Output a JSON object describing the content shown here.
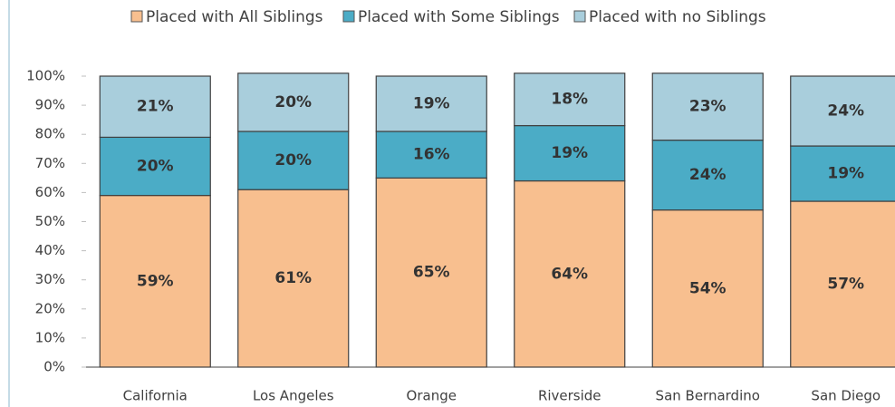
{
  "chart_data": {
    "type": "stacked-bar",
    "categories": [
      "California",
      "Los Angeles",
      "Orange",
      "Riverside",
      "San Bernardino",
      "San Diego"
    ],
    "series": [
      {
        "name": "Placed with All Siblings",
        "color": "#f8bf8f",
        "values": [
          59,
          61,
          65,
          64,
          54,
          57
        ],
        "value_labels": [
          "59%",
          "61%",
          "65%",
          "64%",
          "54%",
          "57%"
        ]
      },
      {
        "name": "Placed with Some Siblings",
        "color": "#4bacc6",
        "values": [
          20,
          20,
          16,
          19,
          24,
          19
        ],
        "value_labels": [
          "20%",
          "20%",
          "16%",
          "19%",
          "24%",
          "19%"
        ]
      },
      {
        "name": "Placed with no Siblings",
        "color": "#a9cedc",
        "values": [
          21,
          20,
          19,
          18,
          23,
          24
        ],
        "value_labels": [
          "21%",
          "20%",
          "19%",
          "18%",
          "23%",
          "24%"
        ]
      }
    ],
    "ylim": [
      0,
      100
    ],
    "yticks": [
      {
        "value": 0,
        "label": "0%"
      },
      {
        "value": 10,
        "label": "10%"
      },
      {
        "value": 20,
        "label": "20%"
      },
      {
        "value": 30,
        "label": "30%"
      },
      {
        "value": 40,
        "label": "40%"
      },
      {
        "value": 50,
        "label": "50%"
      },
      {
        "value": 60,
        "label": "60%"
      },
      {
        "value": 70,
        "label": "70%"
      },
      {
        "value": 80,
        "label": "80%"
      },
      {
        "value": 90,
        "label": "90%"
      },
      {
        "value": 100,
        "label": "100%"
      }
    ],
    "legend": "top",
    "grid": false
  }
}
